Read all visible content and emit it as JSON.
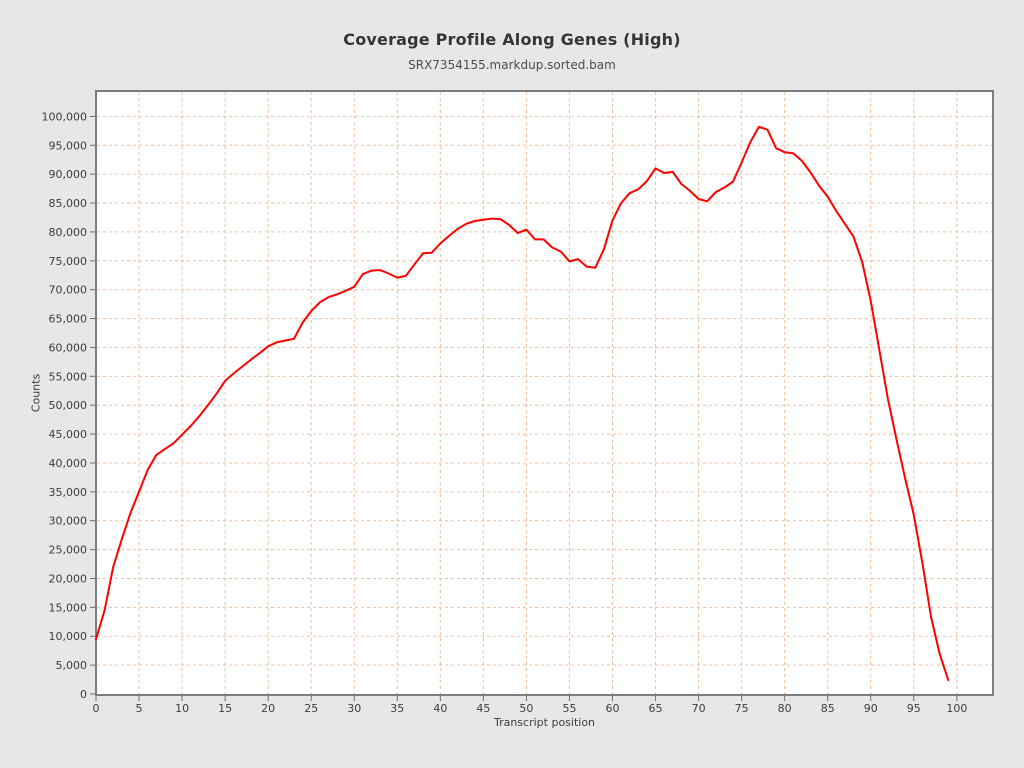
{
  "header": {
    "title": "Coverage Profile Along Genes (High)",
    "subtitle": "SRX7354155.markdup.sorted.bam"
  },
  "chart_data": {
    "type": "line",
    "title": "Coverage Profile Along Genes (High)",
    "subtitle": "SRX7354155.markdup.sorted.bam",
    "xlabel": "Transcript position",
    "ylabel": "Counts",
    "legend": "none",
    "grid": true,
    "grid_style": "dashed",
    "grid_color": "#f5bd96",
    "line_color": "#ff0000",
    "plot_background": "#ffffff",
    "page_background": "#e7e7e7",
    "frame_color": "#7d7d7d",
    "xlim": [
      0,
      104.2
    ],
    "ylim": [
      0,
      104400
    ],
    "x_ticks": [
      0,
      5,
      10,
      15,
      20,
      25,
      30,
      35,
      40,
      45,
      50,
      55,
      60,
      65,
      70,
      75,
      80,
      85,
      90,
      95,
      100
    ],
    "y_ticks": [
      0,
      5000,
      10000,
      15000,
      20000,
      25000,
      30000,
      35000,
      40000,
      45000,
      50000,
      55000,
      60000,
      65000,
      70000,
      75000,
      80000,
      85000,
      90000,
      95000,
      100000
    ],
    "x_start": 0,
    "x_step": 1,
    "values": [
      9500,
      14500,
      22000,
      26800,
      31300,
      35000,
      38800,
      41400,
      42400,
      43400,
      44900,
      46400,
      48100,
      50000,
      52000,
      54200,
      55500,
      56700,
      57900,
      59000,
      60200,
      60900,
      61200,
      61500,
      64300,
      66300,
      67800,
      68700,
      69200,
      69800,
      70500,
      72700,
      73300,
      73400,
      72800,
      72100,
      72400,
      74400,
      76300,
      76400,
      78000,
      79300,
      80500,
      81400,
      81900,
      82100,
      82300,
      82200,
      81200,
      79800,
      80400,
      78700,
      78700,
      77300,
      76600,
      74900,
      75300,
      74000,
      73800,
      77000,
      82000,
      85000,
      86700,
      87400,
      88800,
      91000,
      90200,
      90400,
      88300,
      87100,
      85700,
      85300,
      86900,
      87700,
      88700,
      92000,
      95500,
      98200,
      97700,
      94500,
      93800,
      93600,
      92300,
      90300,
      88000,
      86100,
      83600,
      81400,
      79200,
      74800,
      68000,
      59500,
      51000,
      44000,
      37300,
      31000,
      22700,
      13400,
      7000,
      2400
    ]
  }
}
